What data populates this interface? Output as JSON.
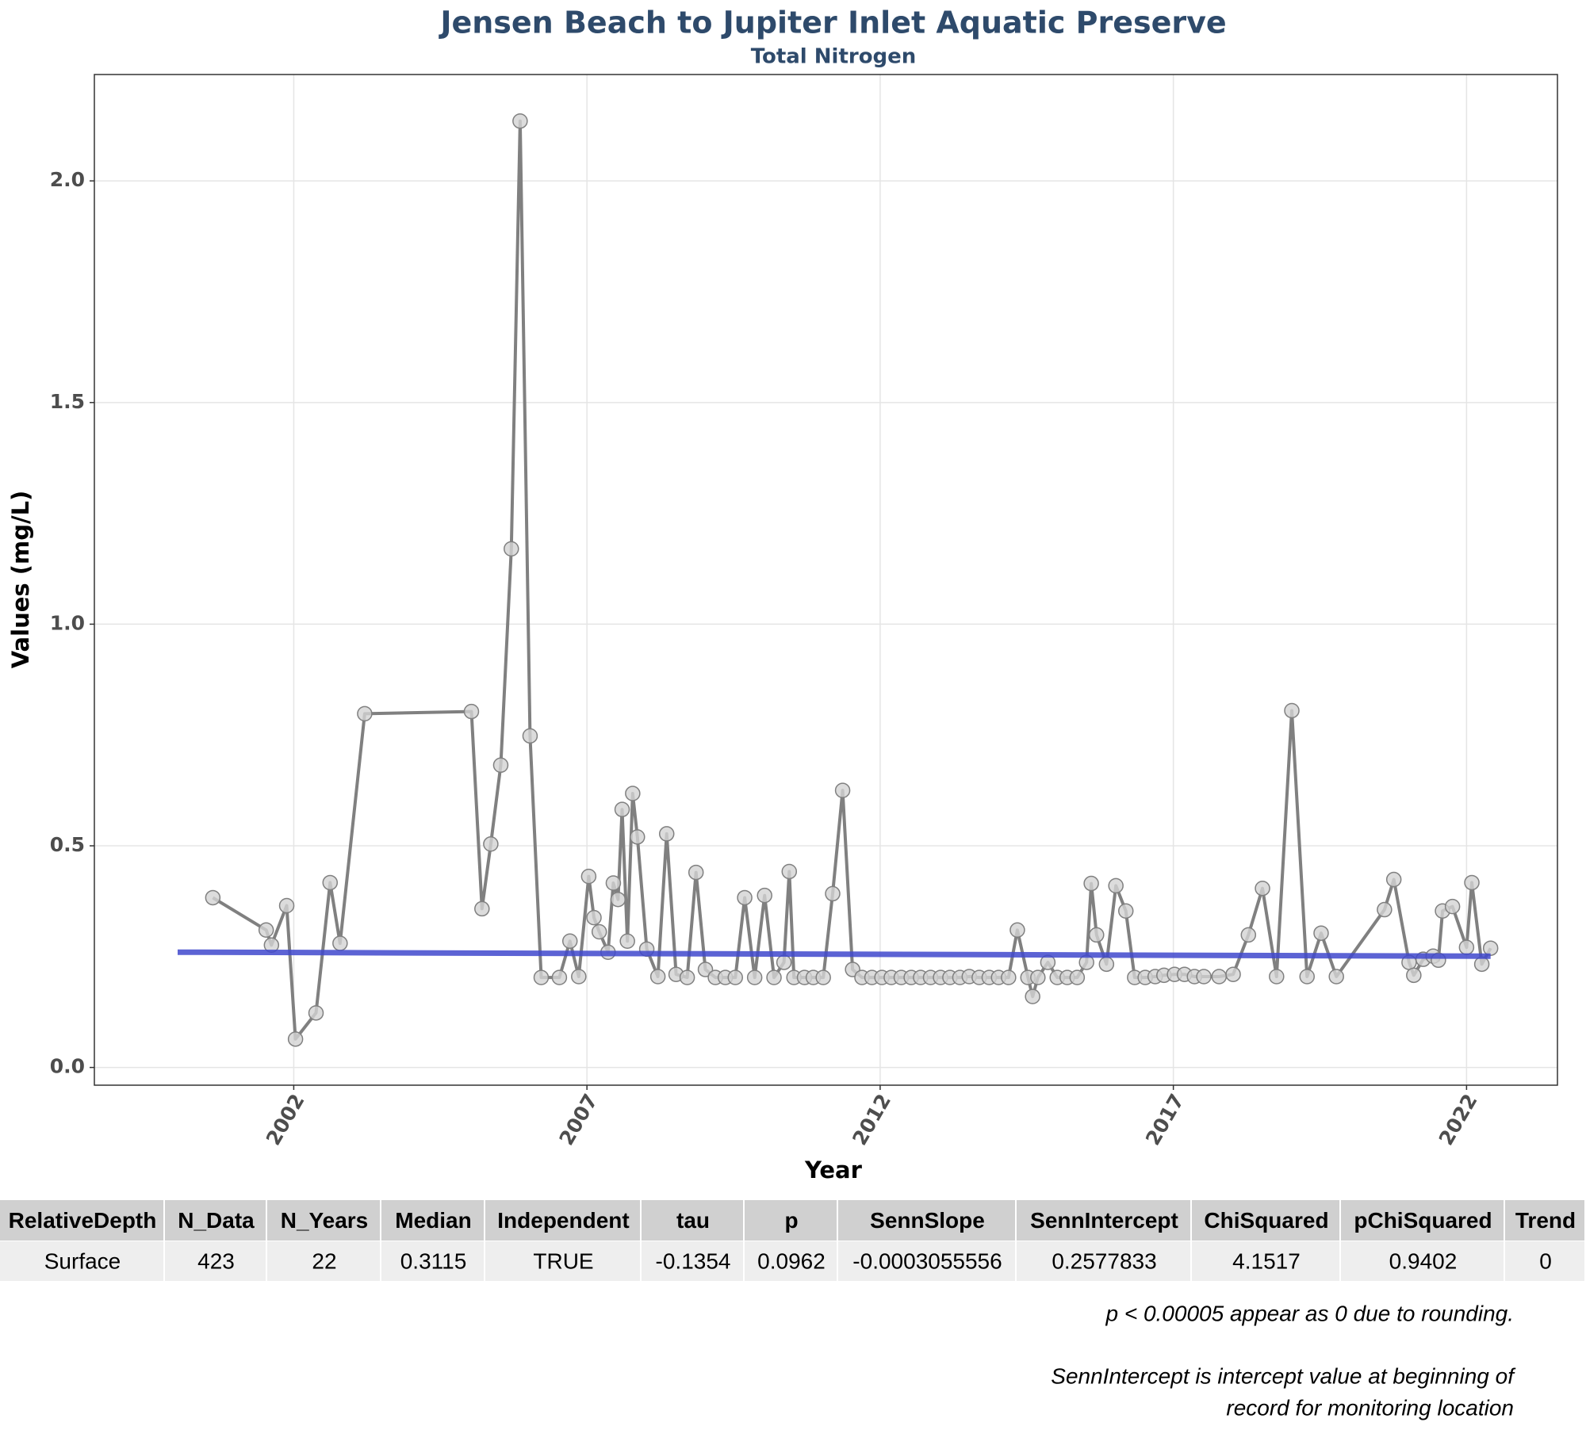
{
  "chart_data": {
    "type": "line",
    "title": "Jensen Beach to Jupiter Inlet Aquatic Preserve",
    "subtitle": "Total Nitrogen",
    "x_label": "Year",
    "y_label": "Values (mg/L)",
    "xlim": [
      1998.6,
      2023.55
    ],
    "ylim": [
      -0.04,
      2.24
    ],
    "xticks": [
      2002,
      2007,
      2012,
      2017,
      2022
    ],
    "yticks": [
      {
        "value": 0,
        "label": "0.0"
      },
      {
        "value": 0.5,
        "label": "0.5"
      },
      {
        "value": 1,
        "label": "1.0"
      },
      {
        "value": 1.5,
        "label": "1.5"
      },
      {
        "value": 2,
        "label": "2.0"
      }
    ],
    "grid": true,
    "series": [
      {
        "color": "#808080",
        "marker_fill": "#d3d3d3",
        "x": [
          2000.62,
          2001.53,
          2001.62,
          2001.88,
          2002.03,
          2002.38,
          2002.62,
          2002.79,
          2003.21,
          2005.03,
          2005.21,
          2005.36,
          2005.53,
          2005.71,
          2005.86,
          2006.03,
          2006.22,
          2006.53,
          2006.71,
          2006.86,
          2007.03,
          2007.12,
          2007.21,
          2007.36,
          2007.45,
          2007.53,
          2007.6,
          2007.69,
          2007.78,
          2007.86,
          2008.02,
          2008.21,
          2008.36,
          2008.52,
          2008.71,
          2008.86,
          2009.02,
          2009.19,
          2009.36,
          2009.53,
          2009.69,
          2009.86,
          2010.03,
          2010.19,
          2010.36,
          2010.45,
          2010.53,
          2010.71,
          2010.86,
          2011.03,
          2011.19,
          2011.36,
          2011.53,
          2011.69,
          2011.86,
          2012.03,
          2012.19,
          2012.36,
          2012.53,
          2012.69,
          2012.86,
          2013.03,
          2013.19,
          2013.36,
          2013.52,
          2013.69,
          2013.86,
          2014.02,
          2014.19,
          2014.34,
          2014.52,
          2014.6,
          2014.69,
          2014.86,
          2015.02,
          2015.19,
          2015.36,
          2015.52,
          2015.6,
          2015.69,
          2015.86,
          2016.02,
          2016.19,
          2016.34,
          2016.52,
          2016.69,
          2016.84,
          2017.02,
          2017.19,
          2017.36,
          2017.52,
          2017.78,
          2018.02,
          2018.28,
          2018.52,
          2018.76,
          2019.02,
          2019.28,
          2019.52,
          2019.78,
          2020.6,
          2020.76,
          2021.02,
          2021.1,
          2021.26,
          2021.43,
          2021.52,
          2021.59,
          2021.76,
          2022.0,
          2022.09,
          2022.26,
          2022.41
        ],
        "values": [
          0.383,
          0.31,
          0.276,
          0.365,
          0.064,
          0.123,
          0.417,
          0.28,
          0.798,
          0.803,
          0.358,
          0.504,
          0.682,
          1.17,
          2.135,
          0.748,
          0.203,
          0.203,
          0.285,
          0.205,
          0.431,
          0.338,
          0.306,
          0.26,
          0.416,
          0.379,
          0.582,
          0.285,
          0.618,
          0.52,
          0.267,
          0.205,
          0.527,
          0.21,
          0.203,
          0.44,
          0.221,
          0.203,
          0.203,
          0.203,
          0.383,
          0.203,
          0.388,
          0.203,
          0.237,
          0.442,
          0.203,
          0.203,
          0.203,
          0.203,
          0.392,
          0.625,
          0.221,
          0.203,
          0.203,
          0.203,
          0.203,
          0.203,
          0.203,
          0.203,
          0.203,
          0.203,
          0.203,
          0.203,
          0.205,
          0.203,
          0.203,
          0.203,
          0.203,
          0.31,
          0.203,
          0.16,
          0.203,
          0.237,
          0.203,
          0.203,
          0.203,
          0.237,
          0.415,
          0.299,
          0.233,
          0.41,
          0.353,
          0.203,
          0.203,
          0.205,
          0.208,
          0.21,
          0.21,
          0.205,
          0.205,
          0.205,
          0.21,
          0.299,
          0.404,
          0.205,
          0.805,
          0.205,
          0.303,
          0.205,
          0.356,
          0.424,
          0.237,
          0.208,
          0.244,
          0.251,
          0.242,
          0.353,
          0.363,
          0.271,
          0.417,
          0.233,
          0.269
        ]
      }
    ],
    "trend_line": {
      "color": "#3f48cc",
      "x": [
        2000.02,
        2022.41
      ],
      "values": [
        0.26,
        0.251
      ]
    }
  },
  "table": {
    "columns": [
      "RelativeDepth",
      "N_Data",
      "N_Years",
      "Median",
      "Independent",
      "tau",
      "p",
      "SennSlope",
      "SennIntercept",
      "ChiSquared",
      "pChiSquared",
      "Trend"
    ],
    "rows": [
      [
        "Surface",
        "423",
        "22",
        "0.3115",
        "TRUE",
        "-0.1354",
        "0.0962",
        "-0.0003055556",
        "0.2577833",
        "4.1517",
        "0.9402",
        "0"
      ]
    ]
  },
  "notes": [
    "p < 0.00005 appear as 0 due to rounding.",
    "SennIntercept is intercept value at beginning of",
    "record for monitoring location"
  ]
}
